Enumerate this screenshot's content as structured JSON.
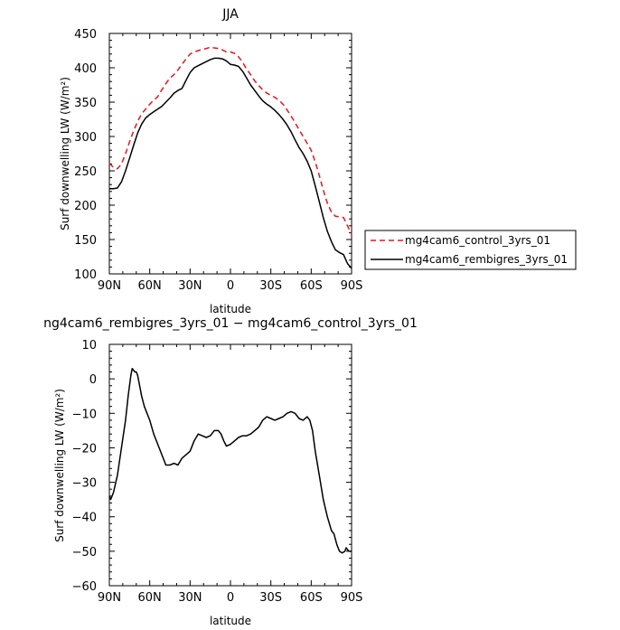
{
  "chart_data": [
    {
      "type": "line",
      "title": "JJA",
      "xlabel": "latitude",
      "ylabel": "Surf downwelling LW (W/m²)",
      "xlim": [
        90,
        -90
      ],
      "ylim": [
        100,
        450
      ],
      "x_ticks": [
        90,
        60,
        30,
        0,
        -30,
        -60,
        -90
      ],
      "x_tick_labels": [
        "90N",
        "60N",
        "30N",
        "0",
        "30S",
        "60S",
        "90S"
      ],
      "y_ticks": [
        100,
        150,
        200,
        250,
        300,
        350,
        400,
        450
      ],
      "y_tick_labels": [
        "100",
        "150",
        "200",
        "250",
        "300",
        "350",
        "400",
        "450"
      ],
      "legend_position": "right",
      "series": [
        {
          "name": "mg4cam6_control_3yrs_01",
          "color": "#e8151b",
          "dash": "dashed",
          "points": [
            [
              90,
              261
            ],
            [
              87,
              255
            ],
            [
              84,
              253
            ],
            [
              81,
              260
            ],
            [
              78,
              275
            ],
            [
              75,
              292
            ],
            [
              72,
              308
            ],
            [
              69,
              322
            ],
            [
              66,
              333
            ],
            [
              63,
              340
            ],
            [
              60,
              347
            ],
            [
              57,
              353
            ],
            [
              54,
              358
            ],
            [
              51,
              368
            ],
            [
              48,
              377
            ],
            [
              45,
              385
            ],
            [
              42,
              390
            ],
            [
              39,
              397
            ],
            [
              36,
              405
            ],
            [
              33,
              413
            ],
            [
              30,
              420
            ],
            [
              27,
              423
            ],
            [
              24,
              425
            ],
            [
              21,
              427
            ],
            [
              18,
              428
            ],
            [
              15,
              430
            ],
            [
              12,
              429
            ],
            [
              9,
              428
            ],
            [
              6,
              426
            ],
            [
              3,
              423
            ],
            [
              0,
              423
            ],
            [
              -3,
              421
            ],
            [
              -6,
              416
            ],
            [
              -9,
              408
            ],
            [
              -12,
              398
            ],
            [
              -15,
              390
            ],
            [
              -18,
              381
            ],
            [
              -21,
              374
            ],
            [
              -24,
              368
            ],
            [
              -27,
              363
            ],
            [
              -30,
              360
            ],
            [
              -33,
              357
            ],
            [
              -36,
              353
            ],
            [
              -39,
              347
            ],
            [
              -42,
              339
            ],
            [
              -45,
              330
            ],
            [
              -48,
              320
            ],
            [
              -51,
              310
            ],
            [
              -54,
              300
            ],
            [
              -57,
              290
            ],
            [
              -60,
              280
            ],
            [
              -63,
              263
            ],
            [
              -66,
              243
            ],
            [
              -69,
              222
            ],
            [
              -72,
              203
            ],
            [
              -75,
              190
            ],
            [
              -78,
              184
            ],
            [
              -81,
              183
            ],
            [
              -84,
              182
            ],
            [
              -87,
              170
            ],
            [
              -90,
              158
            ]
          ]
        },
        {
          "name": "mg4cam6_rembigres_3yrs_01",
          "color": "#000000",
          "dash": "solid",
          "points": [
            [
              90,
              224
            ],
            [
              87,
              224
            ],
            [
              84,
              225
            ],
            [
              81,
              234
            ],
            [
              78,
              250
            ],
            [
              75,
              268
            ],
            [
              72,
              287
            ],
            [
              69,
              305
            ],
            [
              66,
              318
            ],
            [
              63,
              327
            ],
            [
              60,
              332
            ],
            [
              57,
              336
            ],
            [
              54,
              340
            ],
            [
              51,
              344
            ],
            [
              48,
              350
            ],
            [
              45,
              356
            ],
            [
              42,
              363
            ],
            [
              39,
              367
            ],
            [
              36,
              370
            ],
            [
              33,
              382
            ],
            [
              30,
              393
            ],
            [
              27,
              400
            ],
            [
              24,
              403
            ],
            [
              21,
              406
            ],
            [
              18,
              409
            ],
            [
              15,
              412
            ],
            [
              12,
              414
            ],
            [
              9,
              414
            ],
            [
              6,
              413
            ],
            [
              3,
              410
            ],
            [
              0,
              405
            ],
            [
              -3,
              404
            ],
            [
              -6,
              402
            ],
            [
              -9,
              395
            ],
            [
              -12,
              385
            ],
            [
              -15,
              375
            ],
            [
              -18,
              367
            ],
            [
              -21,
              359
            ],
            [
              -24,
              352
            ],
            [
              -27,
              347
            ],
            [
              -30,
              343
            ],
            [
              -33,
              338
            ],
            [
              -36,
              332
            ],
            [
              -39,
              325
            ],
            [
              -42,
              317
            ],
            [
              -45,
              307
            ],
            [
              -48,
              295
            ],
            [
              -51,
              284
            ],
            [
              -54,
              275
            ],
            [
              -57,
              264
            ],
            [
              -60,
              250
            ],
            [
              -63,
              228
            ],
            [
              -66,
              205
            ],
            [
              -69,
              182
            ],
            [
              -72,
              162
            ],
            [
              -75,
              147
            ],
            [
              -78,
              135
            ],
            [
              -81,
              131
            ],
            [
              -84,
              128
            ],
            [
              -87,
              115
            ],
            [
              -90,
              108
            ]
          ]
        }
      ]
    },
    {
      "type": "line",
      "title": "ng4cam6_rembigres_3yrs_01 − mg4cam6_control_3yrs_01",
      "xlabel": "latitude",
      "ylabel": "Surf downwelling LW (W/m²)",
      "xlim": [
        90,
        -90
      ],
      "ylim": [
        -60,
        10
      ],
      "x_ticks": [
        90,
        60,
        30,
        0,
        -30,
        -60,
        -90
      ],
      "x_tick_labels": [
        "90N",
        "60N",
        "30N",
        "0",
        "30S",
        "60S",
        "90S"
      ],
      "y_ticks": [
        -60,
        -50,
        -40,
        -30,
        -20,
        -10,
        0,
        10
      ],
      "y_tick_labels": [
        "−60",
        "−50",
        "−40",
        "−30",
        "−20",
        "−10",
        "0",
        "10"
      ],
      "series": [
        {
          "name": "",
          "color": "#000000",
          "dash": "solid",
          "points": [
            [
              90,
              -34
            ],
            [
              89,
              -35
            ],
            [
              87,
              -33
            ],
            [
              84,
              -28
            ],
            [
              81,
              -20
            ],
            [
              78,
              -12
            ],
            [
              76,
              -5
            ],
            [
              74,
              1
            ],
            [
              73,
              3
            ],
            [
              72,
              2.5
            ],
            [
              71,
              2
            ],
            [
              70,
              2
            ],
            [
              69,
              1
            ],
            [
              68,
              -1
            ],
            [
              66,
              -5
            ],
            [
              64,
              -8
            ],
            [
              62,
              -10
            ],
            [
              60,
              -12
            ],
            [
              57,
              -16
            ],
            [
              54,
              -19
            ],
            [
              51,
              -22
            ],
            [
              48,
              -25
            ],
            [
              45,
              -25
            ],
            [
              42,
              -24.5
            ],
            [
              39,
              -25
            ],
            [
              36,
              -23
            ],
            [
              33,
              -22
            ],
            [
              30,
              -21
            ],
            [
              27,
              -18
            ],
            [
              24,
              -16
            ],
            [
              21,
              -16.5
            ],
            [
              18,
              -17
            ],
            [
              15,
              -16.5
            ],
            [
              12,
              -15
            ],
            [
              9,
              -15
            ],
            [
              7,
              -16
            ],
            [
              5,
              -18
            ],
            [
              3,
              -19.5
            ],
            [
              0,
              -19
            ],
            [
              -3,
              -18
            ],
            [
              -6,
              -17
            ],
            [
              -9,
              -16.5
            ],
            [
              -12,
              -16.5
            ],
            [
              -15,
              -16
            ],
            [
              -18,
              -15
            ],
            [
              -21,
              -14
            ],
            [
              -24,
              -12
            ],
            [
              -27,
              -11
            ],
            [
              -30,
              -11.5
            ],
            [
              -33,
              -12
            ],
            [
              -36,
              -11.5
            ],
            [
              -39,
              -11
            ],
            [
              -42,
              -10
            ],
            [
              -45,
              -9.5
            ],
            [
              -48,
              -10
            ],
            [
              -51,
              -11.5
            ],
            [
              -54,
              -12
            ],
            [
              -57,
              -11
            ],
            [
              -59,
              -12
            ],
            [
              -61,
              -15
            ],
            [
              -63,
              -21
            ],
            [
              -66,
              -28
            ],
            [
              -69,
              -35
            ],
            [
              -72,
              -40
            ],
            [
              -75,
              -44
            ],
            [
              -77,
              -45
            ],
            [
              -79,
              -48
            ],
            [
              -81,
              -50
            ],
            [
              -83,
              -50.5
            ],
            [
              -85,
              -50
            ],
            [
              -86,
              -49
            ],
            [
              -87,
              -49.5
            ],
            [
              -88,
              -50
            ],
            [
              -90,
              -50
            ]
          ]
        }
      ]
    }
  ]
}
